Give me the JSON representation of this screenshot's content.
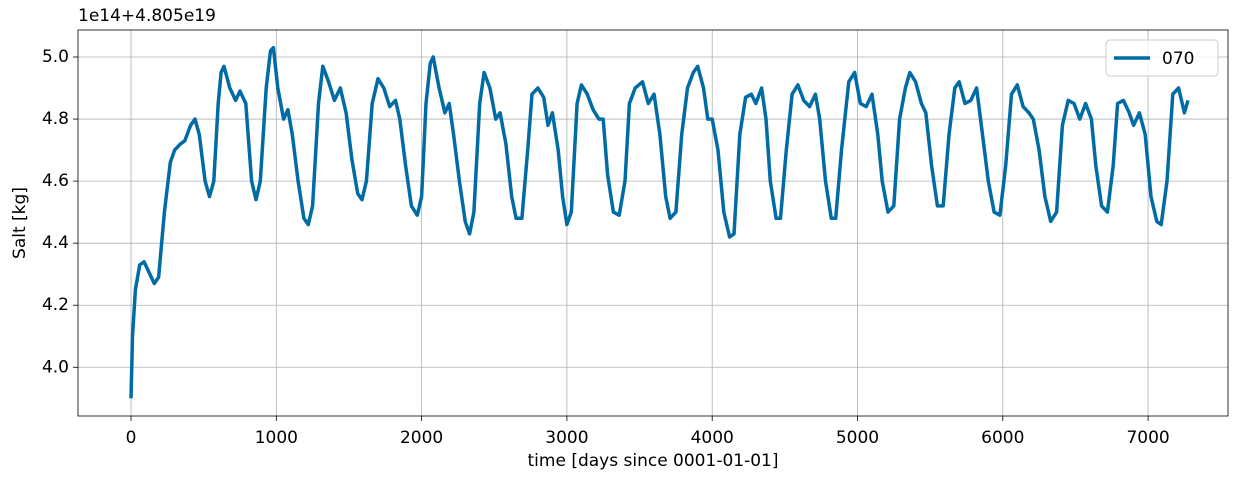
{
  "chart_data": {
    "type": "line",
    "y_offset_label": "1e14+4.805e19",
    "xlabel": "time [days since 0001-01-01]",
    "ylabel": "Salt [kg]",
    "x": [
      0,
      10,
      30,
      60,
      90,
      130,
      160,
      190,
      230,
      270,
      300,
      340,
      370,
      410,
      440,
      470,
      510,
      540,
      570,
      600,
      620,
      640,
      680,
      720,
      750,
      790,
      830,
      860,
      890,
      930,
      960,
      980,
      1010,
      1050,
      1080,
      1110,
      1150,
      1190,
      1220,
      1250,
      1290,
      1320,
      1360,
      1400,
      1440,
      1480,
      1520,
      1560,
      1590,
      1620,
      1660,
      1700,
      1740,
      1780,
      1820,
      1850,
      1890,
      1930,
      1970,
      2000,
      2030,
      2060,
      2080,
      2120,
      2160,
      2190,
      2220,
      2260,
      2300,
      2330,
      2360,
      2400,
      2430,
      2470,
      2510,
      2540,
      2580,
      2620,
      2650,
      2690,
      2730,
      2760,
      2800,
      2840,
      2870,
      2900,
      2940,
      2970,
      3000,
      3030,
      3070,
      3100,
      3140,
      3180,
      3220,
      3250,
      3280,
      3320,
      3360,
      3400,
      3430,
      3470,
      3520,
      3560,
      3600,
      3640,
      3680,
      3710,
      3750,
      3790,
      3830,
      3870,
      3900,
      3940,
      3970,
      4000,
      4040,
      4080,
      4120,
      4150,
      4190,
      4230,
      4270,
      4300,
      4340,
      4370,
      4400,
      4440,
      4470,
      4510,
      4550,
      4590,
      4630,
      4670,
      4710,
      4740,
      4780,
      4820,
      4850,
      4890,
      4940,
      4980,
      5020,
      5060,
      5100,
      5140,
      5170,
      5210,
      5250,
      5290,
      5330,
      5360,
      5400,
      5440,
      5470,
      5510,
      5550,
      5590,
      5630,
      5670,
      5700,
      5740,
      5780,
      5820,
      5860,
      5900,
      5940,
      5980,
      6020,
      6060,
      6100,
      6140,
      6180,
      6210,
      6250,
      6290,
      6330,
      6370,
      6410,
      6450,
      6490,
      6530,
      6570,
      6610,
      6640,
      6680,
      6720,
      6760,
      6790,
      6830,
      6870,
      6900,
      6940,
      6980,
      7020,
      7060,
      7090,
      7130,
      7170,
      7210,
      7250,
      7275
    ],
    "series": [
      {
        "name": "070",
        "color": "#006ba4",
        "values": [
          3.9,
          4.1,
          4.25,
          4.33,
          4.34,
          4.3,
          4.27,
          4.29,
          4.5,
          4.66,
          4.7,
          4.72,
          4.73,
          4.78,
          4.8,
          4.75,
          4.6,
          4.55,
          4.6,
          4.85,
          4.95,
          4.97,
          4.9,
          4.86,
          4.89,
          4.85,
          4.6,
          4.54,
          4.6,
          4.9,
          5.02,
          5.03,
          4.9,
          4.8,
          4.83,
          4.75,
          4.6,
          4.48,
          4.46,
          4.52,
          4.85,
          4.97,
          4.92,
          4.86,
          4.9,
          4.82,
          4.67,
          4.56,
          4.54,
          4.6,
          4.85,
          4.93,
          4.9,
          4.84,
          4.86,
          4.8,
          4.65,
          4.52,
          4.49,
          4.55,
          4.85,
          4.98,
          5.0,
          4.9,
          4.82,
          4.85,
          4.75,
          4.6,
          4.47,
          4.43,
          4.5,
          4.85,
          4.95,
          4.9,
          4.8,
          4.82,
          4.72,
          4.55,
          4.48,
          4.48,
          4.7,
          4.88,
          4.9,
          4.87,
          4.78,
          4.82,
          4.7,
          4.55,
          4.46,
          4.5,
          4.85,
          4.91,
          4.88,
          4.83,
          4.8,
          4.8,
          4.62,
          4.5,
          4.49,
          4.6,
          4.85,
          4.9,
          4.92,
          4.85,
          4.88,
          4.75,
          4.55,
          4.48,
          4.5,
          4.75,
          4.9,
          4.95,
          4.97,
          4.9,
          4.8,
          4.8,
          4.7,
          4.5,
          4.42,
          4.43,
          4.75,
          4.87,
          4.88,
          4.85,
          4.9,
          4.8,
          4.6,
          4.48,
          4.48,
          4.7,
          4.88,
          4.91,
          4.86,
          4.84,
          4.88,
          4.8,
          4.6,
          4.48,
          4.48,
          4.7,
          4.92,
          4.95,
          4.85,
          4.84,
          4.88,
          4.75,
          4.6,
          4.5,
          4.52,
          4.8,
          4.9,
          4.95,
          4.92,
          4.85,
          4.82,
          4.65,
          4.52,
          4.52,
          4.75,
          4.9,
          4.92,
          4.85,
          4.86,
          4.9,
          4.75,
          4.6,
          4.5,
          4.49,
          4.65,
          4.88,
          4.91,
          4.84,
          4.82,
          4.8,
          4.7,
          4.55,
          4.47,
          4.5,
          4.78,
          4.86,
          4.85,
          4.8,
          4.85,
          4.8,
          4.65,
          4.52,
          4.5,
          4.65,
          4.85,
          4.86,
          4.82,
          4.78,
          4.82,
          4.75,
          4.55,
          4.47,
          4.46,
          4.6,
          4.88,
          4.9,
          4.82,
          4.86
        ]
      }
    ],
    "xlim": [
      -365,
      7550
    ],
    "ylim": [
      3.843,
      5.087
    ],
    "xticks": [
      0,
      1000,
      2000,
      3000,
      4000,
      5000,
      6000,
      7000
    ],
    "yticks": [
      {
        "value": 4,
        "label": "4.0"
      },
      {
        "value": 4.2,
        "label": "4.2"
      },
      {
        "value": 4.4,
        "label": "4.4"
      },
      {
        "value": 4.6,
        "label": "4.6"
      },
      {
        "value": 4.8,
        "label": "4.8"
      },
      {
        "value": 5,
        "label": "5.0"
      }
    ],
    "grid": true,
    "legend": "upper-right"
  }
}
